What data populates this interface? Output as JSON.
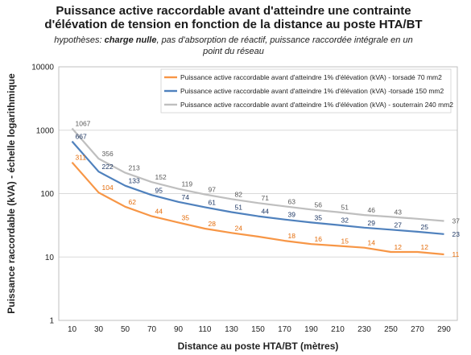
{
  "chart_data": {
    "type": "line",
    "title_lines": [
      "Puissance active raccordable avant d'atteindre une contrainte",
      "d'élévation de tension en fonction de la distance au poste HTA/BT"
    ],
    "subtitle": {
      "prefix": "hypothèses: ",
      "bold": "charge nulle",
      "line1_rest": ", pas d'absorption de réactif, puissance raccordée intégrale en un",
      "line2": "point du réseau"
    },
    "xlabel": "Distance au poste HTA/BT (mètres)",
    "ylabel": "Puissance raccordable (kVA) - échelle logarithmique",
    "y_scale": "log",
    "ylim": [
      1,
      10000
    ],
    "y_ticks": [
      "1",
      "10",
      "100",
      "1000",
      "10000"
    ],
    "x_ticks": [
      "10",
      "30",
      "50",
      "70",
      "90",
      "110",
      "130",
      "150",
      "170",
      "190",
      "210",
      "230",
      "250",
      "270",
      "290"
    ],
    "xlim": [
      0,
      300
    ],
    "grid": "horizontal",
    "legend_position": "top-right",
    "series": [
      {
        "name": "Puissance active raccordable avant d'atteindre 1% d'élévation (kVA) - torsadé 70 mm2",
        "color": "#f79646",
        "label_color": "#e46c0a",
        "x": [
          10,
          30,
          50,
          70,
          90,
          110,
          130,
          150,
          170,
          190,
          210,
          230,
          250,
          270,
          290
        ],
        "values": [
          311,
          104,
          62,
          44,
          35,
          28,
          24,
          21,
          18,
          16,
          15,
          14,
          12,
          12,
          11
        ],
        "labels": [
          "311",
          "104",
          "62",
          "44",
          "35",
          "28",
          "24",
          "",
          "18",
          "16",
          "15",
          "14",
          "12",
          "12",
          "11"
        ]
      },
      {
        "name": "Puissance active raccordable avant d'atteindre 1% d'élévation (kVA) -torsadé 150 mm2",
        "color": "#4f81bd",
        "label_color": "#1f3864",
        "x": [
          10,
          30,
          50,
          70,
          90,
          110,
          130,
          150,
          170,
          190,
          210,
          230,
          250,
          270,
          290
        ],
        "values": [
          667,
          222,
          133,
          95,
          74,
          61,
          51,
          44,
          39,
          35,
          32,
          29,
          27,
          25,
          23
        ],
        "labels": [
          "667",
          "222",
          "133",
          "95",
          "74",
          "61",
          "51",
          "44",
          "39",
          "35",
          "32",
          "29",
          "27",
          "25",
          "23"
        ]
      },
      {
        "name": "Puissance active raccordable avant d'atteindre 1% d'élévation (kVA) - souterrain 240 mm2",
        "color": "#bfbfbf",
        "label_color": "#595959",
        "x": [
          10,
          30,
          50,
          70,
          90,
          110,
          130,
          150,
          170,
          190,
          210,
          230,
          250,
          270,
          290
        ],
        "values": [
          1067,
          356,
          213,
          152,
          119,
          97,
          82,
          71,
          63,
          56,
          51,
          46,
          43,
          40,
          37
        ],
        "labels": [
          "1067",
          "356",
          "213",
          "152",
          "119",
          "97",
          "82",
          "71",
          "63",
          "56",
          "51",
          "46",
          "43",
          "",
          "37"
        ]
      }
    ]
  }
}
